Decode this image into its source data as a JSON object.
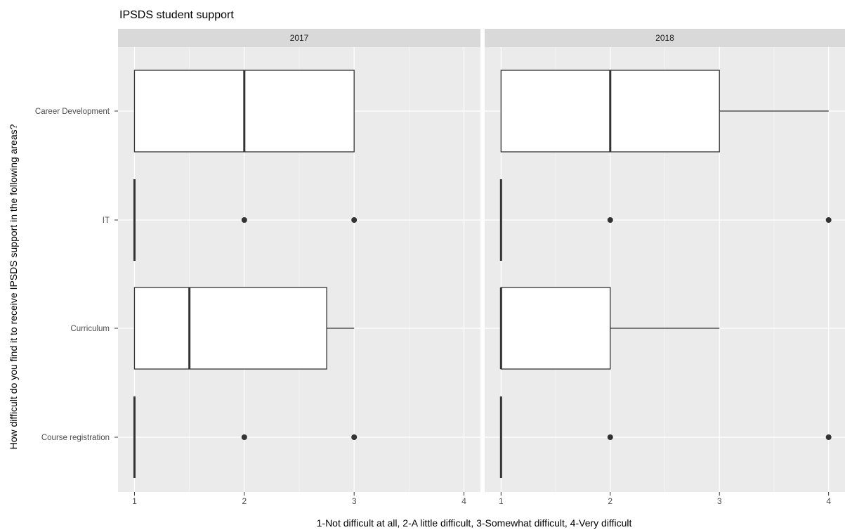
{
  "chart_data": {
    "type": "boxplot",
    "title": "IPSDS student support",
    "xlabel": "1-Not difficult at all, 2-A little difficult, 3-Somewhat difficult, 4-Very difficult",
    "ylabel": "How difficult do you find it to receive IPSDS support in the following areas?",
    "categories": [
      "Career Development",
      "IT",
      "Curriculum",
      "Course registration"
    ],
    "x_ticks": [
      "1",
      "2",
      "3",
      "4"
    ],
    "xlim": [
      0.85,
      4.15
    ],
    "orientation": "horizontal",
    "grid": true,
    "facets": [
      {
        "label": "2017",
        "boxes": [
          {
            "category": "Career Development",
            "min": 1,
            "q1": 1,
            "median": 2,
            "q3": 3,
            "max": 3,
            "outliers": []
          },
          {
            "category": "IT",
            "min": 1,
            "q1": 1,
            "median": 1,
            "q3": 1,
            "max": 1,
            "outliers": [
              2,
              3
            ]
          },
          {
            "category": "Curriculum",
            "min": 1,
            "q1": 1,
            "median": 1.5,
            "q3": 2.75,
            "max": 3,
            "outliers": []
          },
          {
            "category": "Course registration",
            "min": 1,
            "q1": 1,
            "median": 1,
            "q3": 1,
            "max": 1,
            "outliers": [
              2,
              3
            ]
          }
        ]
      },
      {
        "label": "2018",
        "boxes": [
          {
            "category": "Career Development",
            "min": 1,
            "q1": 1,
            "median": 2,
            "q3": 3,
            "max": 4,
            "outliers": []
          },
          {
            "category": "IT",
            "min": 1,
            "q1": 1,
            "median": 1,
            "q3": 1,
            "max": 1,
            "outliers": [
              2,
              4
            ]
          },
          {
            "category": "Curriculum",
            "min": 1,
            "q1": 1,
            "median": 1,
            "q3": 2,
            "max": 3,
            "outliers": []
          },
          {
            "category": "Course registration",
            "min": 1,
            "q1": 1,
            "median": 1,
            "q3": 1,
            "max": 1,
            "outliers": [
              2,
              4
            ]
          }
        ]
      }
    ],
    "colors": {
      "panel_bg": "#ebebeb",
      "strip_bg": "#d9d9d9",
      "grid": "#ffffff",
      "box_fill": "#ffffff",
      "box_stroke": "#333333",
      "point": "#333333",
      "axis_text": "#4d4d4d",
      "title_text": "#000000"
    }
  }
}
